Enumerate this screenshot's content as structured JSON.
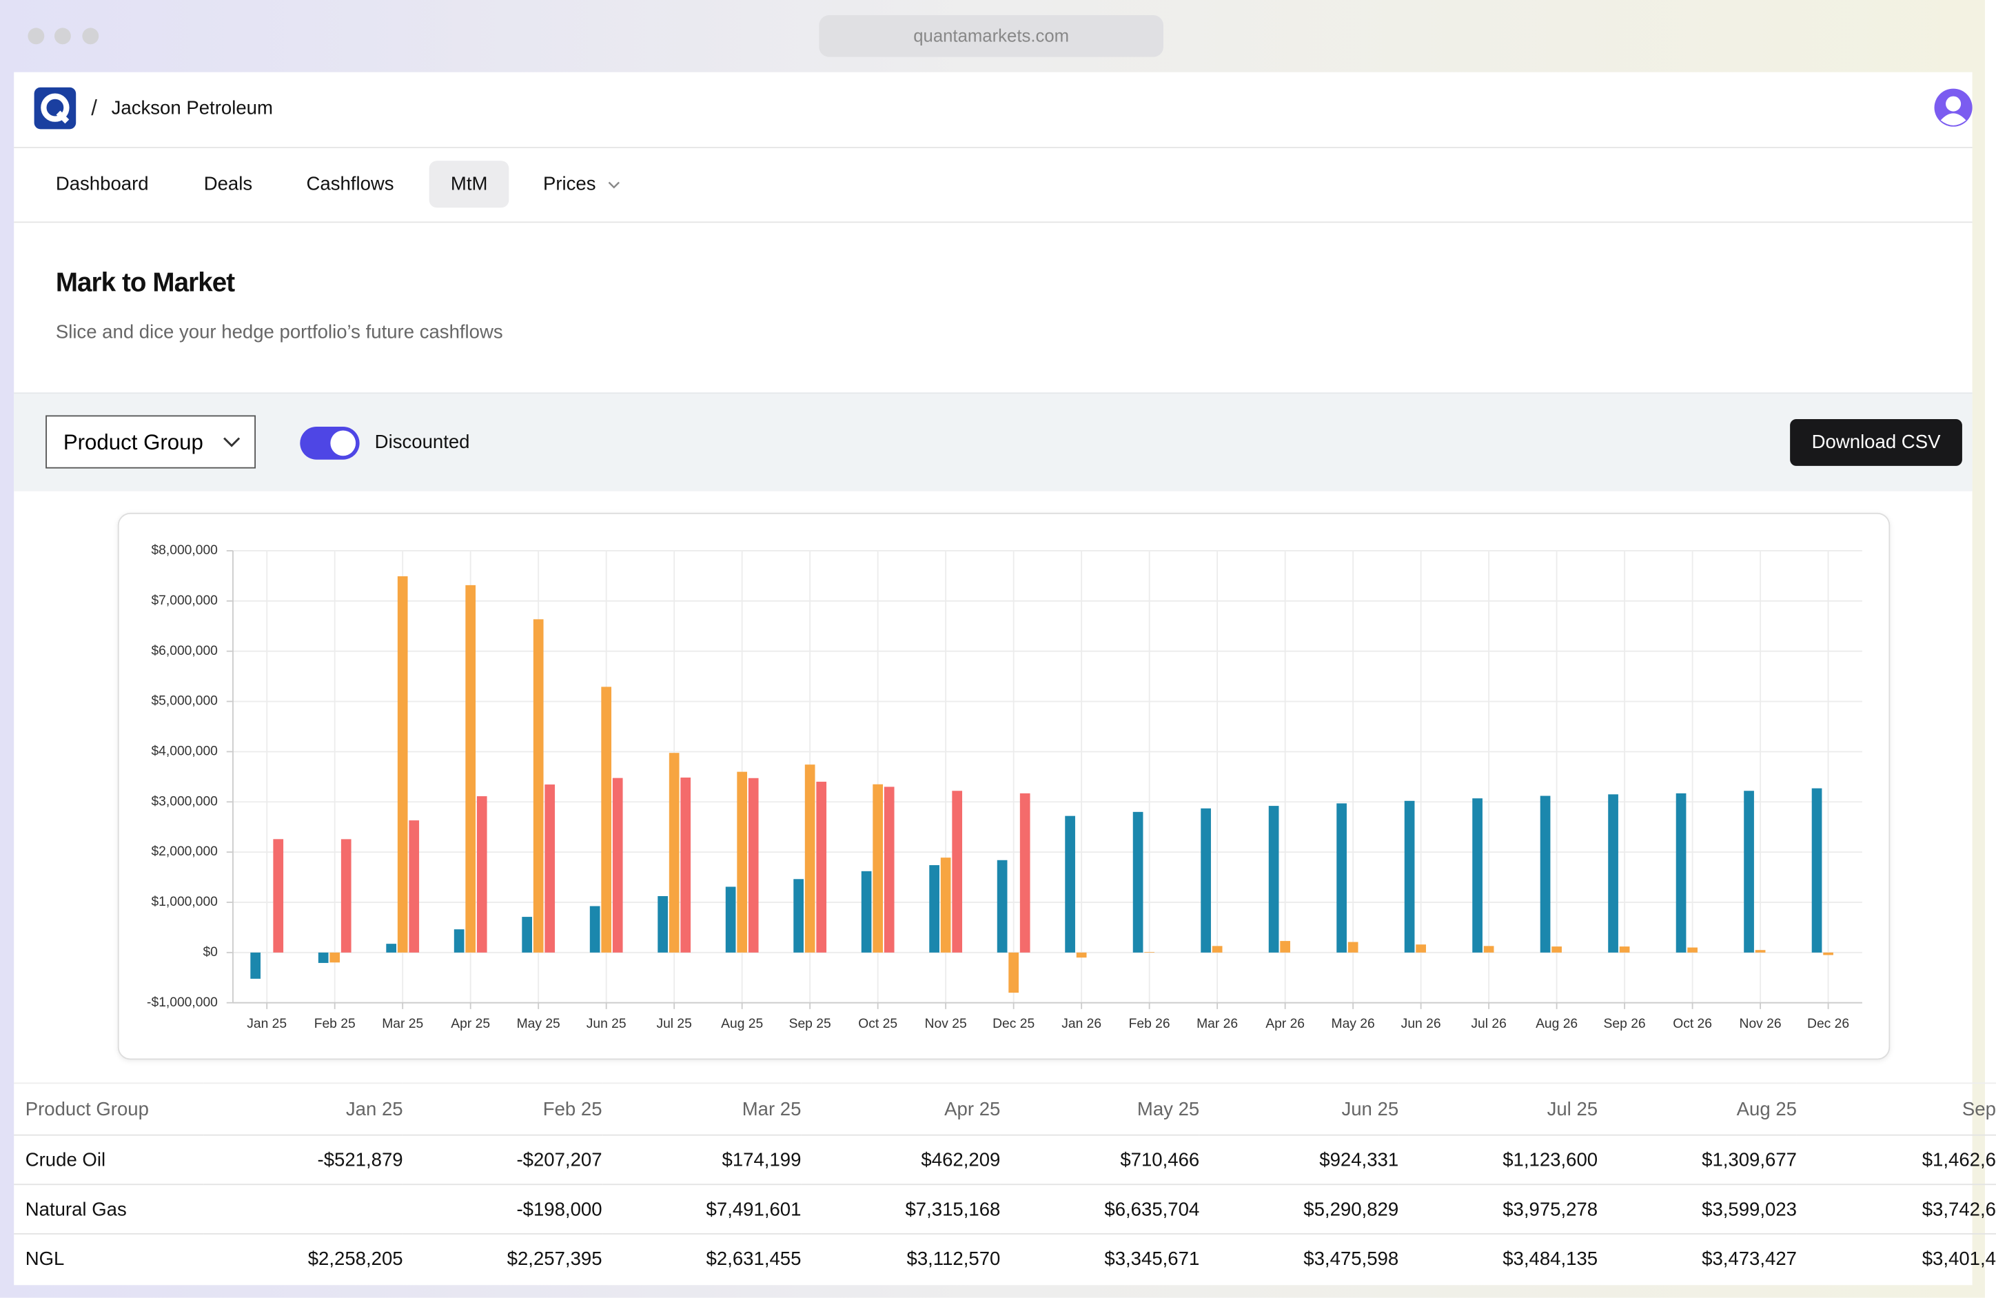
{
  "browser": {
    "url": "quantamarkets.com"
  },
  "header": {
    "company": "Jackson Petroleum"
  },
  "nav": [
    "Dashboard",
    "Deals",
    "Cashflows",
    "MtM",
    "Prices"
  ],
  "active_nav": 3,
  "page": {
    "title": "Mark to Market",
    "subtitle": "Slice and dice your hedge portfolio’s future cashflows"
  },
  "toolbar": {
    "group_by": "Product Group",
    "toggle": "Discounted",
    "toggle_on": true,
    "button": "Download CSV"
  },
  "chart_data": {
    "type": "bar",
    "categories": [
      "Jan 25",
      "Feb 25",
      "Mar 25",
      "Apr 25",
      "May 25",
      "Jun 25",
      "Jul 25",
      "Aug 25",
      "Sep 25",
      "Oct 25",
      "Nov 25",
      "Dec 25",
      "Jan 26",
      "Feb 26",
      "Mar 26",
      "Apr 26",
      "May 26",
      "Jun 26",
      "Jul 26",
      "Aug 26",
      "Sep 26",
      "Oct 26",
      "Nov 26",
      "Dec 26"
    ],
    "series": [
      {
        "color": "#1b87ad",
        "values": [
          -521879,
          -207207,
          174199,
          462209,
          710466,
          924331,
          1123600,
          1309677,
          1462600,
          1620000,
          1740000,
          1840000,
          2720000,
          2800000,
          2870000,
          2920000,
          2970000,
          3020000,
          3070000,
          3120000,
          3150000,
          3170000,
          3220000,
          3270000
        ]
      },
      {
        "color": "#f7a541",
        "values": [
          null,
          -198000,
          7491601,
          7315168,
          6635704,
          5290829,
          3975278,
          3599023,
          3742600,
          3350000,
          1890000,
          -800000,
          -100000,
          10000,
          130000,
          230000,
          210000,
          160000,
          130000,
          120000,
          120000,
          100000,
          50000,
          -50000
        ]
      },
      {
        "color": "#f46b6b",
        "values": [
          2258205,
          2257395,
          2631455,
          3112570,
          3345671,
          3475598,
          3484135,
          3473427,
          3401400,
          3300000,
          3220000,
          3170000,
          null,
          null,
          null,
          null,
          null,
          null,
          null,
          null,
          null,
          null,
          null,
          null
        ]
      }
    ],
    "ylim": [
      -1000000,
      8000000
    ],
    "yticks": [
      {
        "value": -1000000,
        "label": "-$1,000,000"
      },
      {
        "value": 0,
        "label": "$0"
      },
      {
        "value": 1000000,
        "label": "$1,000,000"
      },
      {
        "value": 2000000,
        "label": "$2,000,000"
      },
      {
        "value": 3000000,
        "label": "$3,000,000"
      },
      {
        "value": 4000000,
        "label": "$4,000,000"
      },
      {
        "value": 5000000,
        "label": "$5,000,000"
      },
      {
        "value": 6000000,
        "label": "$6,000,000"
      },
      {
        "value": 7000000,
        "label": "$7,000,000"
      },
      {
        "value": 8000000,
        "label": "$8,000,000"
      }
    ],
    "grid": true
  },
  "table": {
    "header": [
      "Product Group",
      "Jan 25",
      "Feb 25",
      "Mar 25",
      "Apr 25",
      "May 25",
      "Jun 25",
      "Jul 25",
      "Aug 25",
      "Sep"
    ],
    "rows": [
      [
        "Crude Oil",
        "-$521,879",
        "-$207,207",
        "$174,199",
        "$462,209",
        "$710,466",
        "$924,331",
        "$1,123,600",
        "$1,309,677",
        "$1,462,6"
      ],
      [
        "Natural Gas",
        null,
        "-$198,000",
        "$7,491,601",
        "$7,315,168",
        "$6,635,704",
        "$5,290,829",
        "$3,975,278",
        "$3,599,023",
        "$3,742,6"
      ],
      [
        "NGL",
        "$2,258,205",
        "$2,257,395",
        "$2,631,455",
        "$3,112,570",
        "$3,345,671",
        "$3,475,598",
        "$3,484,135",
        "$3,473,427",
        "$3,401,4"
      ]
    ]
  }
}
